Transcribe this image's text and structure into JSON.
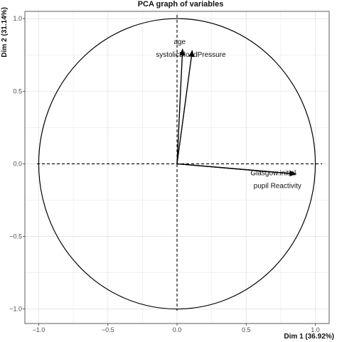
{
  "chart_data": {
    "type": "scatter",
    "title": "PCA graph of variables",
    "xlabel": "Dim 1 (36.92%)",
    "ylabel": "Dim 2 (31.14%)",
    "xlim": [
      -1.1,
      1.1
    ],
    "ylim": [
      -1.1,
      1.05
    ],
    "xticks": [
      -1.0,
      -0.5,
      0.0,
      0.5,
      1.0
    ],
    "yticks": [
      -1.0,
      -0.5,
      0.0,
      0.5,
      1.0
    ],
    "xtick_labels": [
      "−1.0",
      "−0.5",
      "0.0",
      "0.5",
      "1.0"
    ],
    "ytick_labels": [
      "−1.0",
      "−0.5",
      "0.0",
      "0.5",
      "1.0"
    ],
    "grid": true,
    "correlation_circle_radius": 1.0,
    "series": [
      {
        "points": [
          {
            "name": "age",
            "x": 0.04,
            "y": 0.79
          },
          {
            "name": "systolicBloodPressure",
            "x": 0.11,
            "y": 0.78
          },
          {
            "name": "Glasgow.initial",
            "x": 0.86,
            "y": -0.07
          },
          {
            "name": "pupil Reactivity",
            "x": 0.86,
            "y": -0.07
          }
        ]
      }
    ],
    "colors": {
      "arrow": "#000000",
      "grid": "#e5e5e5",
      "panel_border": "#333333"
    }
  }
}
